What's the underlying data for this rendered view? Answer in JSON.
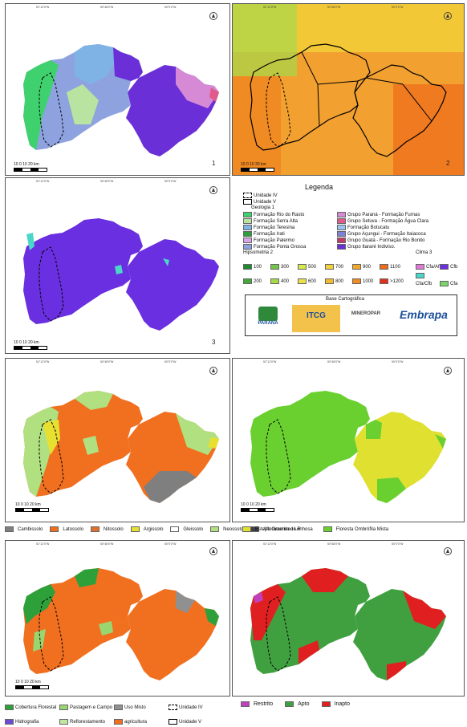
{
  "panels": {
    "p1": {
      "number": "1",
      "scale": "10 0 10 20 km",
      "lon": [
        "51°12'0\"W",
        "50°48'0\"W",
        "50°0'0\"W"
      ],
      "lat": [
        "24°48'0\"S",
        "25°12'0\"S",
        "25°36'0\"S"
      ]
    },
    "p2": {
      "number": "2",
      "scale": "10 0 10 20 km",
      "lon": [
        "51°12'0\"W",
        "50°48'0\"W",
        "50°0'0\"W"
      ],
      "lat": [
        "24°48'0\"S",
        "25°12'0\"S",
        "25°36'0\"S"
      ]
    },
    "p3": {
      "number": "3",
      "scale": "10 0 10 20 km",
      "lon": [
        "51°12'0\"W",
        "50°48'0\"W",
        "50°0'0\"W"
      ],
      "lat": [
        "24°48'0\"S",
        "25°12'0\"S",
        "25°36'0\"S"
      ]
    },
    "p4": {
      "scale": "10 0 10 20 km",
      "lon": [
        "51°12'0\"W",
        "50°48'0\"W",
        "50°0'0\"W"
      ],
      "lat": [
        "24°48'0\"S",
        "25°12'0\"S",
        "25°36'0\"S"
      ]
    },
    "p5": {
      "scale": "10 0 10 20 km",
      "lon": [
        "51°12'0\"W",
        "50°48'0\"W",
        "50°0'0\"W"
      ],
      "lat": [
        "24°48'0\"S",
        "25°12'0\"S",
        "25°36'0\"S"
      ]
    },
    "p6": {
      "scale": "10 0 10 20 km",
      "lon": [
        "51°12'0\"W",
        "50°48'0\"W",
        "50°0'0\"W"
      ],
      "lat": [
        "24°48'0\"S",
        "25°12'0\"S",
        "25°36'0\"S"
      ]
    },
    "p7": {
      "scale": "10 0 10 20 km",
      "lon": [
        "51°12'0\"W",
        "50°48'0\"W",
        "50°0'0\"W"
      ],
      "lat": [
        "24°48'0\"S",
        "25°12'0\"S",
        "25°36'0\"S"
      ]
    }
  },
  "legend": {
    "title": "Legenda",
    "unit4": "Unidade IV",
    "unit5": "Unidade V",
    "geo_title": "Geologia 1",
    "geo_left": [
      {
        "label": "Formação Rio do Rasto",
        "color": "#3fd16e"
      },
      {
        "label": "Formação Serra Alta",
        "color": "#b9e3a0"
      },
      {
        "label": "Formação Teresina",
        "color": "#7fb3e6"
      },
      {
        "label": "Formação Irati",
        "color": "#2e9e3c"
      },
      {
        "label": "Formação Palermo",
        "color": "#d6a6e6"
      },
      {
        "label": "Formação Ponta Grossa",
        "color": "#8ea2e0"
      }
    ],
    "geo_right": [
      {
        "label": "Grupo Paraná - Formação Furnas",
        "color": "#d68ad6"
      },
      {
        "label": "Grupo Setuva - Formação Água Clara",
        "color": "#e05a8a"
      },
      {
        "label": "Formação Botucatu",
        "color": "#9cc2f0"
      },
      {
        "label": "Grupo Açungui - Formação Itaiacoca",
        "color": "#7f7fd6"
      },
      {
        "label": "Grupo Guatá - Formação Rio Bonito",
        "color": "#c03a6a"
      },
      {
        "label": "Grupo Itararé Indiviso.",
        "color": "#6a2fd6"
      }
    ],
    "hyp_title": "Hipsometria 2",
    "hyp": [
      {
        "label": "100",
        "color": "#1e8a2e"
      },
      {
        "label": "300",
        "color": "#73c44a"
      },
      {
        "label": "500",
        "color": "#d7e84a"
      },
      {
        "label": "700",
        "color": "#f3d23a"
      },
      {
        "label": "900",
        "color": "#f2a62a"
      },
      {
        "label": "1100",
        "color": "#ef6a1a"
      },
      {
        "label": "200",
        "color": "#44a83a"
      },
      {
        "label": "400",
        "color": "#a7d84a"
      },
      {
        "label": "600",
        "color": "#eee04a"
      },
      {
        "label": "800",
        "color": "#f2bc32"
      },
      {
        "label": "1000",
        "color": "#f08a22"
      },
      {
        "label": ">1200",
        "color": "#e0301a"
      }
    ],
    "clima_title": "Clima 3",
    "clima": [
      {
        "label": "Cfa/Af",
        "color": "#e07ad6"
      },
      {
        "label": "Cfb",
        "color": "#6a2fe0"
      },
      {
        "label": "Cfa/Cfb",
        "color": "#4ad6c8"
      },
      {
        "label": "Cfa",
        "color": "#7ad66a"
      }
    ],
    "base": "Base Cartográfica",
    "logos": [
      "PARANÁ",
      "ITCG",
      "MINEROPAR",
      "Embrapa"
    ]
  },
  "soils": [
    {
      "label": "Cambissolo",
      "color": "#7f7f7f"
    },
    {
      "label": "Latossolo",
      "color": "#f07020"
    },
    {
      "label": "Nitossolo",
      "color": "#e0702a"
    },
    {
      "label": "Argissolo",
      "color": "#e8e030"
    },
    {
      "label": "Gleissolo",
      "color": "#ffffff"
    },
    {
      "label": "Neossolo",
      "color": "#b0e080"
    },
    {
      "label": "Afloramento de R",
      "color": "#404050"
    }
  ],
  "veg": [
    {
      "label": "Estepe Gramíneo Lenhosa",
      "color": "#e0e030"
    },
    {
      "label": "Floresta Ombrófila Mista",
      "color": "#6ad030"
    }
  ],
  "landuse": [
    {
      "label": "Cobertura Florestal",
      "color": "#2ea03a"
    },
    {
      "label": "Pastagem e Campo",
      "color": "#9ad670"
    },
    {
      "label": "Uso Misto",
      "color": "#909090"
    },
    {
      "label": "Unidade IV",
      "color": "none"
    },
    {
      "label": "Hidrografia",
      "color": "#6a4ad6"
    },
    {
      "label": "Reflorestamento",
      "color": "#c0e8a0"
    },
    {
      "label": "agricultura",
      "color": "#f07020"
    },
    {
      "label": "Unidade V",
      "color": "none"
    }
  ],
  "aptidao": [
    {
      "label": "Restrito",
      "color": "#c040c0"
    },
    {
      "label": "Apto",
      "color": "#40a040"
    },
    {
      "label": "Inapto",
      "color": "#e02020"
    }
  ],
  "colors": {
    "p3_fill": "#6a2fe0",
    "p2_bg": "#f2a030",
    "p5_green": "#6ad030",
    "p5_yellow": "#e0e030",
    "p6_orange": "#f07020",
    "p7_green": "#40a040",
    "p7_red": "#e02020"
  }
}
